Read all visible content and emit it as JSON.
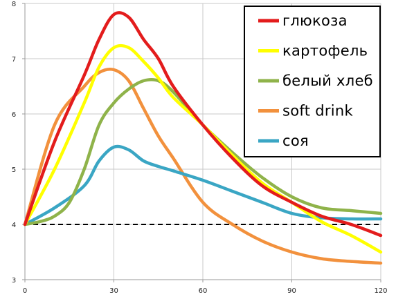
{
  "chart_data": {
    "type": "line",
    "title": "",
    "xlabel": "",
    "ylabel": "",
    "xlim": [
      0,
      120
    ],
    "ylim": [
      3,
      8
    ],
    "xticks": [
      0,
      30,
      60,
      90,
      120
    ],
    "yticks": [
      3,
      4,
      5,
      6,
      7,
      8
    ],
    "xtick_labels": [
      "0",
      "30",
      "60",
      "90",
      "120"
    ],
    "ytick_labels": [
      "3",
      "4",
      "5",
      "6",
      "7",
      "8"
    ],
    "grid": true,
    "legend_position": "top-right",
    "reference_line": {
      "y": 4,
      "style": "dashed",
      "color": "#000000"
    },
    "series": [
      {
        "name": "глюкоза",
        "color": "#e31c1c",
        "x": [
          0,
          10,
          20,
          25,
          30,
          35,
          40,
          45,
          50,
          60,
          70,
          80,
          90,
          100,
          110,
          120
        ],
        "y": [
          4.0,
          5.5,
          6.7,
          7.35,
          7.8,
          7.75,
          7.35,
          7.0,
          6.5,
          5.8,
          5.2,
          4.7,
          4.4,
          4.15,
          4.0,
          3.8
        ]
      },
      {
        "name": "картофель",
        "color": "#ffff00",
        "x": [
          0,
          10,
          20,
          25,
          30,
          35,
          40,
          45,
          50,
          60,
          70,
          80,
          90,
          100,
          110,
          120
        ],
        "y": [
          4.0,
          5.0,
          6.2,
          6.85,
          7.2,
          7.2,
          6.95,
          6.65,
          6.3,
          5.8,
          5.25,
          4.75,
          4.4,
          4.05,
          3.8,
          3.5
        ]
      },
      {
        "name": "белый хлеб",
        "color": "#8fb34a",
        "x": [
          0,
          5,
          10,
          15,
          20,
          25,
          30,
          35,
          40,
          45,
          50,
          60,
          70,
          80,
          90,
          100,
          110,
          120
        ],
        "y": [
          4.0,
          4.05,
          4.15,
          4.4,
          5.0,
          5.8,
          6.2,
          6.45,
          6.6,
          6.6,
          6.4,
          5.8,
          5.3,
          4.85,
          4.5,
          4.3,
          4.25,
          4.2
        ]
      },
      {
        "name": "soft drink",
        "color": "#f2913d",
        "x": [
          0,
          10,
          20,
          25,
          30,
          35,
          40,
          45,
          50,
          60,
          70,
          80,
          90,
          100,
          110,
          120
        ],
        "y": [
          4.0,
          5.8,
          6.5,
          6.75,
          6.8,
          6.6,
          6.1,
          5.6,
          5.2,
          4.4,
          4.0,
          3.7,
          3.5,
          3.38,
          3.33,
          3.3
        ]
      },
      {
        "name": "соя",
        "color": "#3aa6c4",
        "x": [
          0,
          10,
          20,
          25,
          30,
          35,
          40,
          45,
          50,
          60,
          70,
          80,
          90,
          100,
          110,
          120
        ],
        "y": [
          4.0,
          4.3,
          4.7,
          5.15,
          5.4,
          5.35,
          5.15,
          5.05,
          4.97,
          4.8,
          4.6,
          4.4,
          4.2,
          4.12,
          4.1,
          4.1
        ]
      }
    ]
  }
}
